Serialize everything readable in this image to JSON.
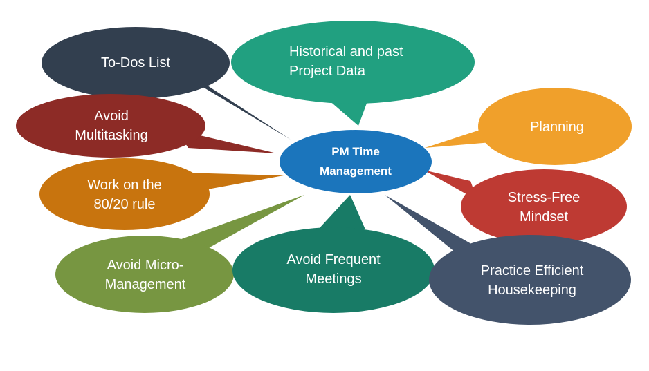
{
  "center": {
    "label": "PM Time\nManagement",
    "color": "#1b75bc"
  },
  "bubbles": [
    {
      "id": "todo",
      "label": "To-Dos List",
      "color": "#323f4f"
    },
    {
      "id": "historical",
      "label": "Historical and past\nProject Data",
      "color": "#21a080"
    },
    {
      "id": "multitask",
      "label": "Avoid\nMultitasking",
      "color": "#8d2b26"
    },
    {
      "id": "planning",
      "label": "Planning",
      "color": "#f0a02b"
    },
    {
      "id": "rule8020",
      "label": "Work on the\n80/20 rule",
      "color": "#c8740e"
    },
    {
      "id": "stress",
      "label": "Stress-Free\nMindset",
      "color": "#be3a33"
    },
    {
      "id": "micro",
      "label": "Avoid Micro-\nManagement",
      "color": "#779641"
    },
    {
      "id": "meetings",
      "label": "Avoid Frequent\nMeetings",
      "color": "#187b66"
    },
    {
      "id": "housekeeping",
      "label": "Practice Efficient\nHousekeeping",
      "color": "#43536b"
    }
  ]
}
